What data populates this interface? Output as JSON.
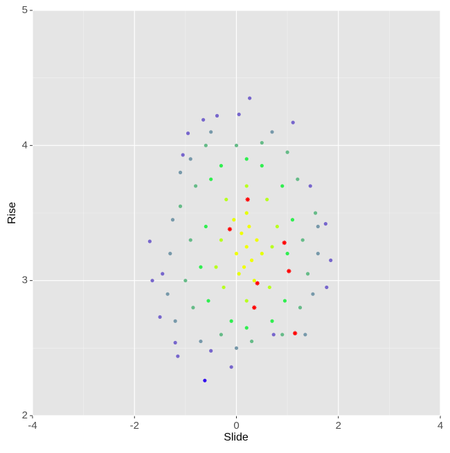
{
  "chart_data": {
    "type": "scatter",
    "xlabel": "Slide",
    "ylabel": "Rise",
    "xlim": [
      -4,
      4
    ],
    "ylim": [
      2,
      5
    ],
    "xticks": [
      -4,
      -2,
      0,
      2,
      4
    ],
    "yticks": [
      2,
      3,
      4,
      5
    ],
    "xminor": [
      -3,
      -1,
      1,
      3
    ],
    "yminor": [
      2.5,
      3.5,
      4.5
    ],
    "grid": true,
    "panel_color": "#e5e5e5",
    "grid_color": "#ffffff",
    "points": {
      "x": [
        0.2,
        0.1,
        0.3,
        0.15,
        0.25,
        0.0,
        0.4,
        0.2,
        0.35,
        -0.05,
        0.5,
        0.05,
        -0.3,
        0.7,
        -0.2,
        0.6,
        -0.25,
        0.65,
        0.2,
        0.2,
        -0.4,
        0.8,
        -0.6,
        1.0,
        -0.5,
        0.9,
        -0.55,
        0.95,
        0.2,
        0.2,
        -0.7,
        1.1,
        0.5,
        -0.1,
        0.7,
        -0.3,
        -0.9,
        1.3,
        -0.8,
        1.2,
        -0.85,
        1.25,
        0.0,
        0.5,
        0.3,
        -0.3,
        0.9,
        -1.0,
        1.4,
        -0.6,
        1.0,
        1.55,
        -1.1,
        -1.3,
        -1.25,
        -1.35,
        -1.2,
        -1.1,
        -0.9,
        1.6,
        1.5,
        1.35,
        -0.5,
        0.7,
        0.0,
        -0.7,
        1.6,
        0.26,
        0.05,
        -0.38,
        -0.65,
        1.11,
        -0.95,
        -1.05,
        -1.7,
        -1.65,
        -1.2,
        -1.15,
        -0.1,
        1.75,
        1.85,
        1.77,
        1.45,
        -0.5,
        0.73,
        -1.5,
        -1.45,
        -0.62
      ],
      "y": [
        3.25,
        3.35,
        3.15,
        3.1,
        3.4,
        3.2,
        3.3,
        3.5,
        3.0,
        3.45,
        3.2,
        3.05,
        3.3,
        3.25,
        3.6,
        3.6,
        2.95,
        2.95,
        3.7,
        2.85,
        3.1,
        3.4,
        3.4,
        3.2,
        3.75,
        3.7,
        2.85,
        2.85,
        3.9,
        2.65,
        3.1,
        3.45,
        3.85,
        2.7,
        2.7,
        3.85,
        3.3,
        3.3,
        3.7,
        3.75,
        2.8,
        2.8,
        4.0,
        4.02,
        2.55,
        2.6,
        2.6,
        3.0,
        3.05,
        4.0,
        3.95,
        3.5,
        3.55,
        3.2,
        3.45,
        2.9,
        2.7,
        3.8,
        3.9,
        3.2,
        2.9,
        2.6,
        4.1,
        4.1,
        2.5,
        2.55,
        3.4,
        4.35,
        4.23,
        4.22,
        4.19,
        4.17,
        4.09,
        3.93,
        3.29,
        3.0,
        2.54,
        2.44,
        2.36,
        3.42,
        3.15,
        2.95,
        3.7,
        2.48,
        2.6,
        2.73,
        3.05,
        2.26
      ],
      "colors": [
        "#f0ff00",
        "#f0ff00",
        "#f0ff00",
        "#f0ff00",
        "#f0ff00",
        "#f0ff00",
        "#f0ff00",
        "#e6ff00",
        "#e6ff00",
        "#e6ff00",
        "#e6ff00",
        "#e6ff00",
        "#b8ff20",
        "#b8ff20",
        "#b8ff20",
        "#b8ff20",
        "#b8ff20",
        "#b8ff20",
        "#b8ff20",
        "#b8ff20",
        "#b8ff20",
        "#b8ff20",
        "#30ee50",
        "#30ee50",
        "#30ee50",
        "#30ee50",
        "#30ee50",
        "#30ee50",
        "#30ee50",
        "#30ee50",
        "#30ee50",
        "#30ee50",
        "#30ee50",
        "#30ee50",
        "#30ee50",
        "#30ee50",
        "#66bb88",
        "#66bb88",
        "#66bb88",
        "#66bb88",
        "#66bb88",
        "#66bb88",
        "#66bb88",
        "#66bb88",
        "#66bb88",
        "#66bb88",
        "#66bb88",
        "#66bb88",
        "#66bb88",
        "#66bb88",
        "#66bb88",
        "#66bb88",
        "#66bb88",
        "#7799aa",
        "#7799aa",
        "#7799aa",
        "#7799aa",
        "#7799aa",
        "#7799aa",
        "#7799aa",
        "#7799aa",
        "#7799aa",
        "#7799aa",
        "#7799aa",
        "#7799aa",
        "#7799aa",
        "#7799aa",
        "#7766cc",
        "#7766cc",
        "#7766cc",
        "#7766cc",
        "#7766cc",
        "#7766cc",
        "#7766cc",
        "#7766cc",
        "#7766cc",
        "#7766cc",
        "#7766cc",
        "#7766cc",
        "#7766cc",
        "#7766cc",
        "#7766cc",
        "#7766cc",
        "#7766cc",
        "#7766cc",
        "#7766cc",
        "#7766cc",
        "#3311ee"
      ]
    },
    "highlights": {
      "x": [
        0.22,
        -0.13,
        0.94,
        1.03,
        0.41,
        0.35,
        1.15
      ],
      "y": [
        3.6,
        3.38,
        3.28,
        3.07,
        2.98,
        2.8,
        2.61
      ],
      "color": "#ff0000"
    }
  }
}
